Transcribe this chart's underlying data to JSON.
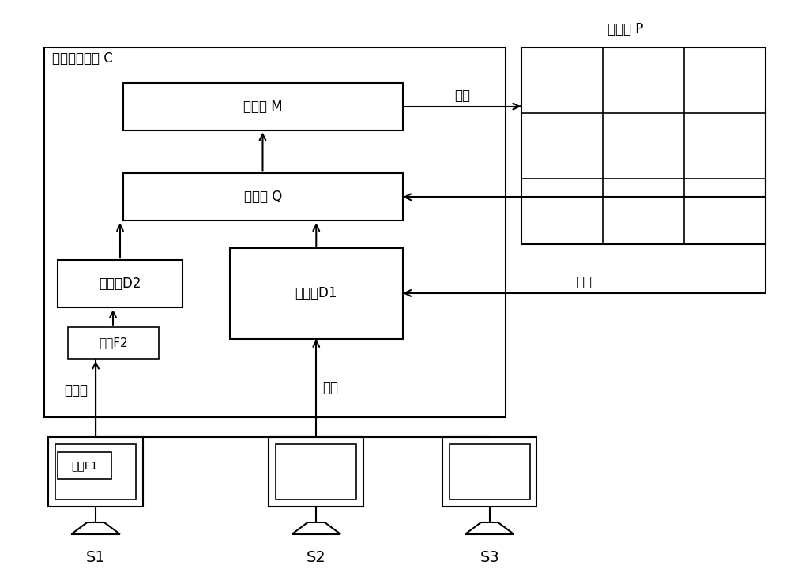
{
  "title_spliced_screen": "拼接屏 P",
  "title_controller": "拼接屏控制器 C",
  "label_splitter": "分割器 M",
  "label_merger": "融合器 Q",
  "label_decoder1": "解码器D1",
  "label_decoder2": "解码器D2",
  "label_file2": "文件F2",
  "label_file1": "文件F1",
  "label_s1": "S1",
  "label_s2": "S2",
  "label_s3": "S3",
  "arrow_huamian1": "画面",
  "arrow_huamian2": "画面",
  "arrow_fankui": "反馈",
  "arrow_wenjianliu": "文件流",
  "bg_color": "#ffffff",
  "box_color": "#000000",
  "font_size_label": 12,
  "font_size_title": 12
}
